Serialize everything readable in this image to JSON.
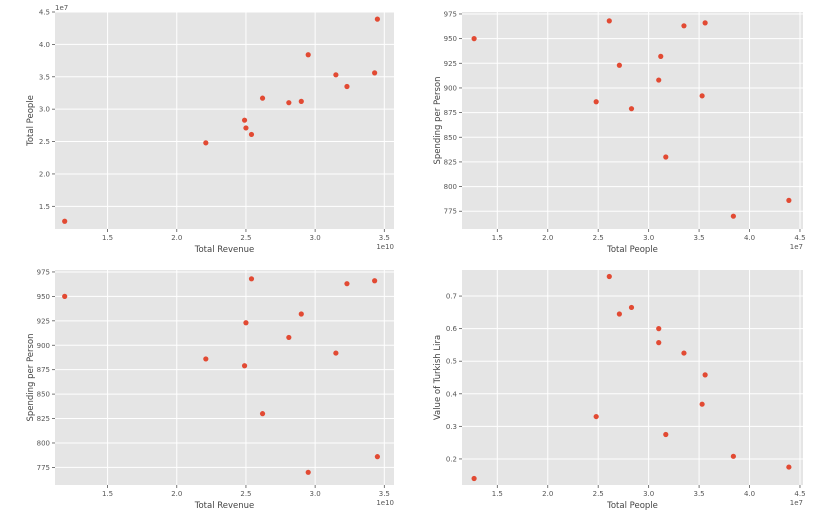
{
  "colors": {
    "plot_bg": "#e5e5e5",
    "grid": "#ffffff",
    "point": "#e24a33",
    "text": "#555555"
  },
  "chart_data": [
    {
      "type": "scatter",
      "title": "",
      "xlabel": "Total Revenue",
      "ylabel": "Total People",
      "x_offset_label": "1e10",
      "y_offset_label": "1e7",
      "xlim": [
        1.12,
        3.57
      ],
      "ylim": [
        1.15,
        4.5
      ],
      "xticks": [
        1.5,
        2.0,
        2.5,
        3.0,
        3.5
      ],
      "xtick_labels": [
        "1.5",
        "2.0",
        "2.5",
        "3.0",
        "3.5"
      ],
      "yticks": [
        1.5,
        2.0,
        2.5,
        3.0,
        3.5,
        4.0,
        4.5
      ],
      "ytick_labels": [
        "1.5",
        "2.0",
        "2.5",
        "3.0",
        "3.5",
        "4.0",
        "4.5"
      ],
      "grid": true,
      "x": [
        1.19,
        2.21,
        2.49,
        2.5,
        2.54,
        2.62,
        2.81,
        2.9,
        2.95,
        3.15,
        3.23,
        3.43,
        3.45
      ],
      "y": [
        1.27,
        2.48,
        2.83,
        2.71,
        2.61,
        3.17,
        3.1,
        3.12,
        3.84,
        3.53,
        3.35,
        3.56,
        4.39
      ]
    },
    {
      "type": "scatter",
      "title": "",
      "xlabel": "Total People",
      "ylabel": "Spending per Person",
      "x_offset_label": "1e7",
      "y_offset_label": "",
      "xlim": [
        1.15,
        4.53
      ],
      "ylim": [
        757,
        977
      ],
      "xticks": [
        1.5,
        2.0,
        2.5,
        3.0,
        3.5,
        4.0,
        4.5
      ],
      "xtick_labels": [
        "1.5",
        "2.0",
        "2.5",
        "3.0",
        "3.5",
        "4.0",
        "4.5"
      ],
      "yticks": [
        775,
        800,
        825,
        850,
        875,
        900,
        925,
        950,
        975
      ],
      "ytick_labels": [
        "775",
        "800",
        "825",
        "850",
        "875",
        "900",
        "925",
        "950",
        "975"
      ],
      "grid": true,
      "x": [
        1.27,
        2.48,
        2.61,
        2.71,
        2.83,
        3.1,
        3.12,
        3.17,
        3.35,
        3.53,
        3.56,
        3.84,
        4.39
      ],
      "y": [
        950,
        886,
        968,
        923,
        879,
        908,
        932,
        830,
        963,
        892,
        966,
        770,
        786
      ]
    },
    {
      "type": "scatter",
      "title": "",
      "xlabel": "Total Revenue",
      "ylabel": "Spending per Person",
      "x_offset_label": "1e10",
      "y_offset_label": "",
      "xlim": [
        1.12,
        3.57
      ],
      "ylim": [
        757,
        977
      ],
      "xticks": [
        1.5,
        2.0,
        2.5,
        3.0,
        3.5
      ],
      "xtick_labels": [
        "1.5",
        "2.0",
        "2.5",
        "3.0",
        "3.5"
      ],
      "yticks": [
        775,
        800,
        825,
        850,
        875,
        900,
        925,
        950,
        975
      ],
      "ytick_labels": [
        "775",
        "800",
        "825",
        "850",
        "875",
        "900",
        "925",
        "950",
        "975"
      ],
      "grid": true,
      "x": [
        1.19,
        2.21,
        2.49,
        2.5,
        2.54,
        2.62,
        2.81,
        2.9,
        2.95,
        3.15,
        3.23,
        3.43,
        3.45
      ],
      "y": [
        950,
        886,
        879,
        923,
        968,
        830,
        908,
        932,
        770,
        892,
        963,
        966,
        786
      ]
    },
    {
      "type": "scatter",
      "title": "",
      "xlabel": "Total People",
      "ylabel": "Value of Turkish Lira",
      "x_offset_label": "1e7",
      "y_offset_label": "",
      "xlim": [
        1.15,
        4.53
      ],
      "ylim": [
        0.12,
        0.78
      ],
      "xticks": [
        1.5,
        2.0,
        2.5,
        3.0,
        3.5,
        4.0,
        4.5
      ],
      "xtick_labels": [
        "1.5",
        "2.0",
        "2.5",
        "3.0",
        "3.5",
        "4.0",
        "4.5"
      ],
      "yticks": [
        0.2,
        0.3,
        0.4,
        0.5,
        0.6,
        0.7
      ],
      "ytick_labels": [
        "0.2",
        "0.3",
        "0.4",
        "0.5",
        "0.6",
        "0.7"
      ],
      "grid": true,
      "x": [
        1.27,
        2.48,
        2.61,
        2.71,
        2.83,
        3.1,
        3.1,
        3.17,
        3.35,
        3.53,
        3.56,
        3.84,
        4.39
      ],
      "y": [
        0.14,
        0.33,
        0.76,
        0.645,
        0.665,
        0.6,
        0.557,
        0.275,
        0.525,
        0.368,
        0.458,
        0.208,
        0.175
      ]
    }
  ]
}
